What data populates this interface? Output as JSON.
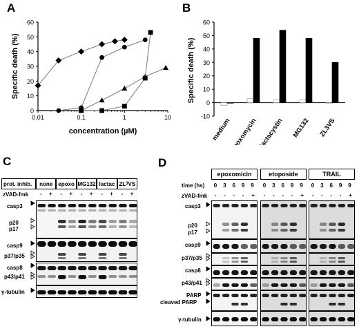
{
  "panelA": {
    "label": "A",
    "chart_data": {
      "type": "scatter",
      "xlabel": "concentration (µM)",
      "ylabel": "Specific death (%)",
      "xscale": "log",
      "xlim": [
        0.01,
        10
      ],
      "ylim": [
        0,
        60
      ],
      "xticks": [
        "0.01",
        "0.1",
        "1",
        "10"
      ],
      "yticks": [
        "0",
        "10",
        "20",
        "30",
        "40",
        "50",
        "60"
      ],
      "series": [
        {
          "marker": "diamond",
          "x": [
            0.01,
            0.03,
            0.1,
            0.3,
            0.6,
            1
          ],
          "y": [
            17,
            34,
            40,
            45,
            47,
            48
          ]
        },
        {
          "marker": "circle",
          "x": [
            0.03,
            0.1,
            0.3,
            1,
            3
          ],
          "y": [
            0,
            2,
            36,
            43,
            48
          ]
        },
        {
          "marker": "triangle",
          "x": [
            0.1,
            0.3,
            1,
            3,
            9
          ],
          "y": [
            0,
            7,
            15,
            23,
            29
          ]
        },
        {
          "marker": "square",
          "x": [
            0.1,
            0.3,
            1,
            3,
            4
          ],
          "y": [
            0,
            0,
            3,
            22,
            53
          ]
        }
      ]
    }
  },
  "panelB": {
    "label": "B",
    "chart_data": {
      "type": "bar",
      "ylabel": "Specific death (%)",
      "ylim": [
        -10,
        60
      ],
      "yticks": [
        "-10",
        "0",
        "10",
        "20",
        "30",
        "40",
        "50",
        "60"
      ],
      "categories": [
        "medium",
        "epoxomycin",
        "lactacystin",
        "MG132",
        "ZL3VS"
      ],
      "series": [
        {
          "color": "#ffffff",
          "values": [
            -2,
            3,
            2,
            2,
            0
          ]
        },
        {
          "color": "#000000",
          "values": [
            0,
            48,
            54,
            48,
            30
          ]
        }
      ]
    }
  },
  "panelC": {
    "label": "C",
    "header_label": "prot. inhib.",
    "zvad_label": "zVAD-fmk",
    "groups": [
      "none",
      "epoxo",
      "MG132",
      "lactac",
      "ZL3VS"
    ],
    "signs": [
      "-",
      "+"
    ],
    "rows": {
      "casp3": "casp3",
      "p20": "p20",
      "p17": "p17",
      "casp9": "casp9",
      "p37": "p37/p35",
      "casp8": "casp8",
      "p43": "p43/p41",
      "tubulin": "γ-tubulin"
    }
  },
  "panelD": {
    "label": "D",
    "groups": [
      "epoxomicin",
      "etoposide",
      "TRAIL"
    ],
    "time_label": "time (hs)",
    "zvad_label": "zVAD-fmk",
    "times": [
      "0",
      "3",
      "6",
      "9",
      "9"
    ],
    "zvad": [
      "-",
      "-",
      "-",
      "-",
      "+"
    ],
    "rows": {
      "casp3": "casp3",
      "p20": "p20",
      "p17": "p17",
      "casp9": "casp9",
      "p37": "p37/p35",
      "casp8": "casp8",
      "p43": "p43/p41",
      "parp": "PARP",
      "cparp": "cleaved PARP",
      "tubulin": "γ-tubulin"
    }
  }
}
